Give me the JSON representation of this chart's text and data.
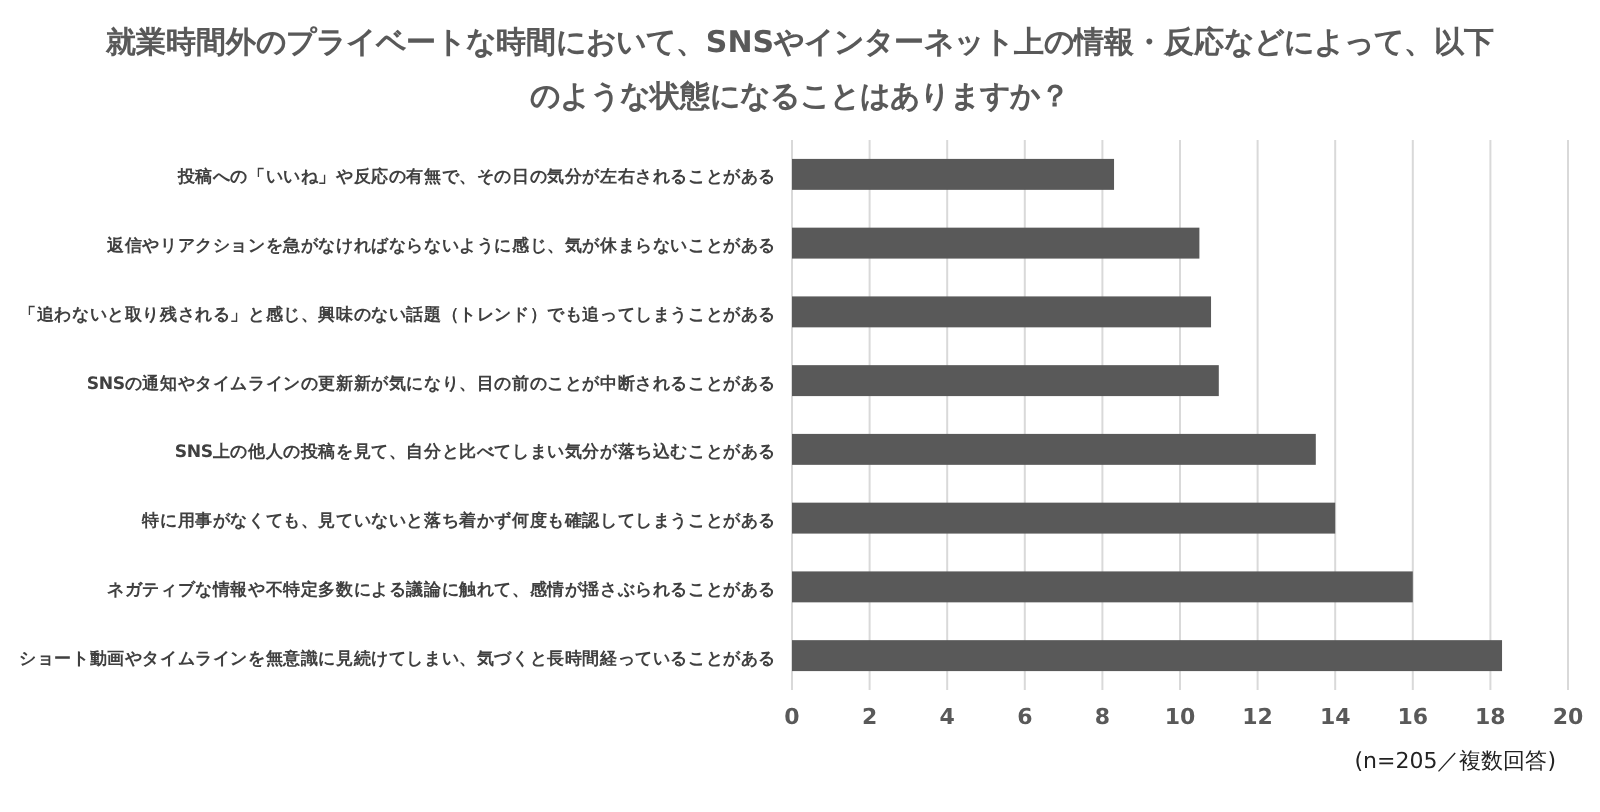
{
  "chart_data": {
    "type": "bar",
    "orientation": "horizontal",
    "title": "就業時間外のプライベートな時間において、SNSやインターネット上の情報・反応などによって、以下のような状態になることはありますか？",
    "categories": [
      "投稿への「いいね」や反応の有無で、その日の気分が左右されることがある",
      "返信やリアクションを急がなければならないように感じ、気が休まらないことがある",
      "「追わないと取り残される」と感じ、興味のない話題（トレンド）でも追ってしまうことがある",
      "SNSの通知やタイムラインの更新新が気になり、目の前のことが中断されることがある",
      "SNS上の他人の投稿を見て、自分と比べてしまい気分が落ち込むことがある",
      "特に用事がなくても、見ていないと落ち着かず何度も確認してしまうことがある",
      "ネガティブな情報や不特定多数による議論に触れて、感情が揺さぶられることがある",
      "ショート動画やタイムラインを無意識に見続けてしまい、気づくと長時間経っていることがある"
    ],
    "values": [
      8.3,
      10.5,
      10.8,
      11.0,
      13.5,
      14.0,
      16.0,
      18.3
    ],
    "color": "#595959",
    "xlim": [
      0,
      20
    ],
    "xticks": [
      0,
      2,
      4,
      6,
      8,
      10,
      12,
      14,
      16,
      18,
      20
    ],
    "grid": "x",
    "annotations": [
      "(n=205／複数回答)"
    ]
  }
}
